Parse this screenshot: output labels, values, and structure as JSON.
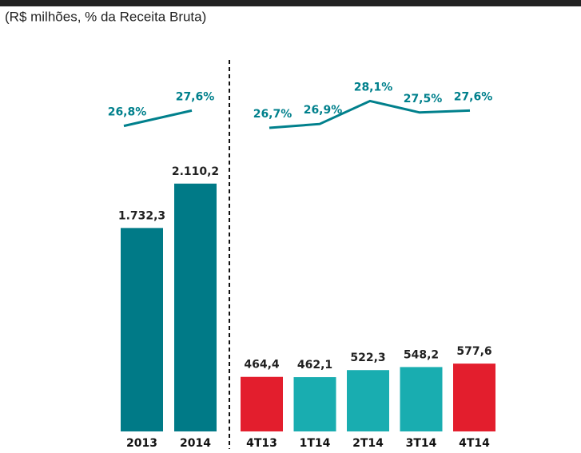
{
  "subtitle": "(R$ milhões, % da Receita Bruta)",
  "chart_data": [
    {
      "type": "bar",
      "categories": [
        "2013",
        "2014"
      ],
      "series": [
        {
          "type": "bar",
          "values": [
            1732.3,
            2110.2
          ],
          "value_labels": [
            "1.732,3",
            "2.110,2"
          ],
          "colors": [
            "#007a87",
            "#007a87"
          ]
        },
        {
          "type": "line",
          "values": [
            26.8,
            27.6
          ],
          "value_labels": [
            "26,8%",
            "27,6%"
          ],
          "color": "#00808c"
        }
      ]
    },
    {
      "type": "bar",
      "categories": [
        "4T13",
        "1T14",
        "2T14",
        "3T14",
        "4T14"
      ],
      "series": [
        {
          "type": "bar",
          "values": [
            464.4,
            462.1,
            522.3,
            548.2,
            577.6
          ],
          "value_labels": [
            "464,4",
            "462,1",
            "522,3",
            "548,2",
            "577,6"
          ],
          "colors": [
            "#e31e2d",
            "#19adb0",
            "#19adb0",
            "#19adb0",
            "#e31e2d"
          ]
        },
        {
          "type": "line",
          "values": [
            26.7,
            26.9,
            28.1,
            27.5,
            27.6
          ],
          "value_labels": [
            "26,7%",
            "26,9%",
            "28,1%",
            "27,5%",
            "27,6%"
          ],
          "color": "#00808c"
        }
      ]
    }
  ]
}
